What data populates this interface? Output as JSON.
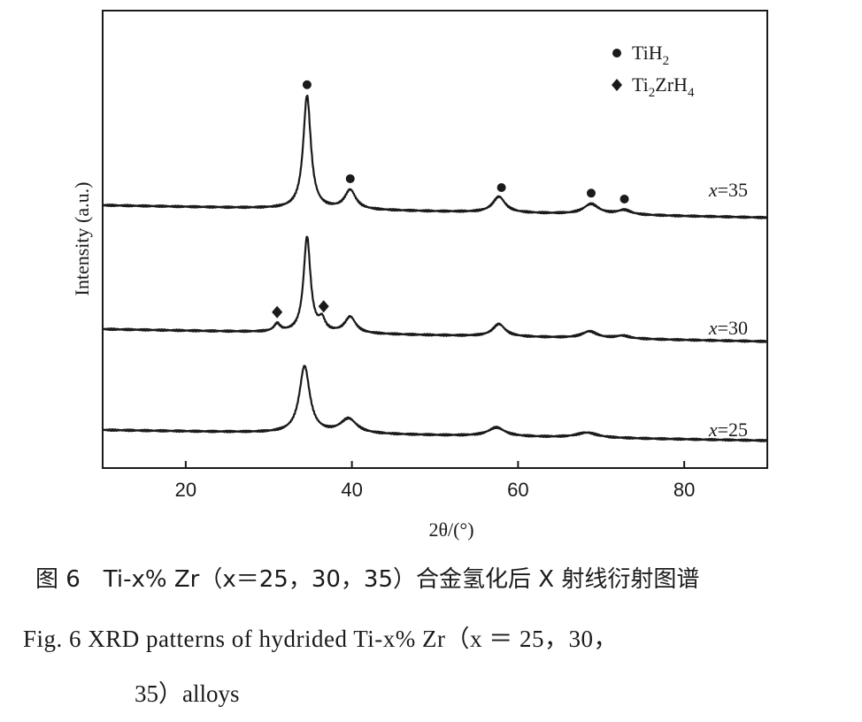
{
  "chart_data": {
    "type": "line",
    "title": "",
    "xlabel": "2θ/(°)",
    "ylabel": "Intensity (a.u.)",
    "xlim": [
      10,
      90
    ],
    "xticks": [
      20,
      40,
      60,
      80
    ],
    "grid": false,
    "legend": {
      "placement": "top-right",
      "entries": [
        {
          "marker": "circle",
          "label": "TiH",
          "sub": "2",
          "label2": "",
          "sub2": ""
        },
        {
          "marker": "diamond",
          "label": "Ti",
          "sub": "2",
          "label2": "ZrH",
          "sub2": "4"
        }
      ]
    },
    "series": [
      {
        "name": "x=35",
        "label_var": "x",
        "label_val": "=35",
        "baseline_start": 0.32,
        "baseline_end": 0.04,
        "peaks": [
          {
            "x": 34.6,
            "height": 1.0,
            "width": 0.55
          },
          {
            "x": 39.8,
            "height": 0.17,
            "width": 0.8
          },
          {
            "x": 57.7,
            "height": 0.14,
            "width": 0.9
          },
          {
            "x": 68.8,
            "height": 0.09,
            "width": 1.1
          },
          {
            "x": 72.8,
            "height": 0.04,
            "width": 1.0
          }
        ],
        "markers": [
          {
            "x": 34.6,
            "type": "circle"
          },
          {
            "x": 39.8,
            "type": "circle"
          },
          {
            "x": 58.0,
            "type": "circle"
          },
          {
            "x": 68.8,
            "type": "circle"
          },
          {
            "x": 72.8,
            "type": "circle"
          }
        ]
      },
      {
        "name": "x=30",
        "label_var": "x",
        "label_val": "=30",
        "baseline_start": 0.25,
        "baseline_end": 0.04,
        "peaks": [
          {
            "x": 31.0,
            "height": 0.08,
            "width": 0.45
          },
          {
            "x": 34.6,
            "height": 1.0,
            "width": 0.5
          },
          {
            "x": 36.4,
            "height": 0.12,
            "width": 0.45
          },
          {
            "x": 39.8,
            "height": 0.17,
            "width": 0.8
          },
          {
            "x": 57.7,
            "height": 0.13,
            "width": 0.9
          },
          {
            "x": 68.6,
            "height": 0.07,
            "width": 1.1
          },
          {
            "x": 72.6,
            "height": 0.03,
            "width": 1.0
          }
        ],
        "markers": [
          {
            "x": 31.0,
            "type": "diamond"
          },
          {
            "x": 36.6,
            "type": "diamond"
          }
        ]
      },
      {
        "name": "x=25",
        "label_var": "x",
        "label_val": "=25",
        "baseline_start": 0.2,
        "baseline_end": 0.03,
        "peaks": [
          {
            "x": 34.3,
            "height": 0.92,
            "width": 0.75
          },
          {
            "x": 39.6,
            "height": 0.2,
            "width": 1.2
          },
          {
            "x": 57.4,
            "height": 0.12,
            "width": 1.2
          },
          {
            "x": 68.3,
            "height": 0.07,
            "width": 1.5
          }
        ],
        "markers": []
      }
    ]
  },
  "captions": {
    "cn": "图 6　Ti-x% Zr（x＝25，30，35）合金氢化后 X 射线衍射图谱",
    "en_line1": "Fig. 6     XRD patterns of hydrided Ti-x% Zr（x ＝ 25，30，",
    "en_line2": "35）alloys"
  }
}
